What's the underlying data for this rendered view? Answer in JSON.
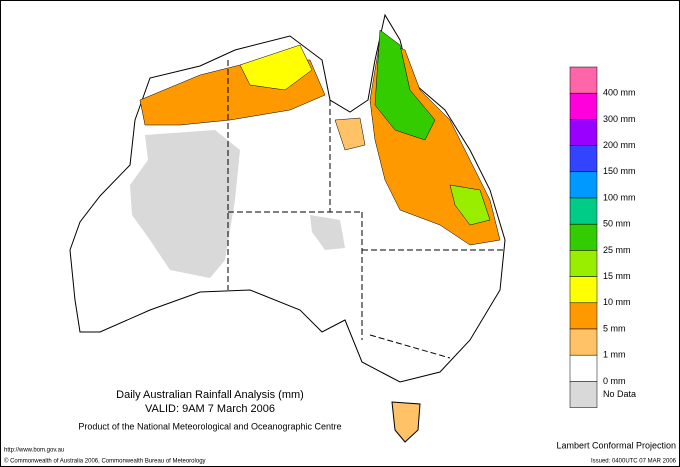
{
  "map": {
    "title": "Daily Australian Rainfall Analysis (mm)",
    "valid": "VALID: 9AM  7 March 2006",
    "product": "Product of the National Meteorological and Oceanographic Centre",
    "url": "http://www.bom.gov.au",
    "copyright": "© Commonwealth of Australia 2006, Commonwealth Bureau of Meteorology",
    "projection": "Lambert Conformal Projection",
    "issued": "Issued: 0400UTC 07 MAR 2006",
    "legend": {
      "colors": [
        "#ff66aa",
        "#ff00dd",
        "#9900ff",
        "#3344ff",
        "#0099ff",
        "#00cc88",
        "#33cc00",
        "#99ee00",
        "#ffff00",
        "#ff9900",
        "#ffc266",
        "#ffffff",
        "#d9d9d9"
      ],
      "labels": [
        "400 mm",
        "300 mm",
        "200 mm",
        "150 mm",
        "100 mm",
        "50 mm",
        "25 mm",
        "15 mm",
        "10 mm",
        "5 mm",
        "1 mm",
        "0 mm",
        "No Data"
      ]
    }
  }
}
